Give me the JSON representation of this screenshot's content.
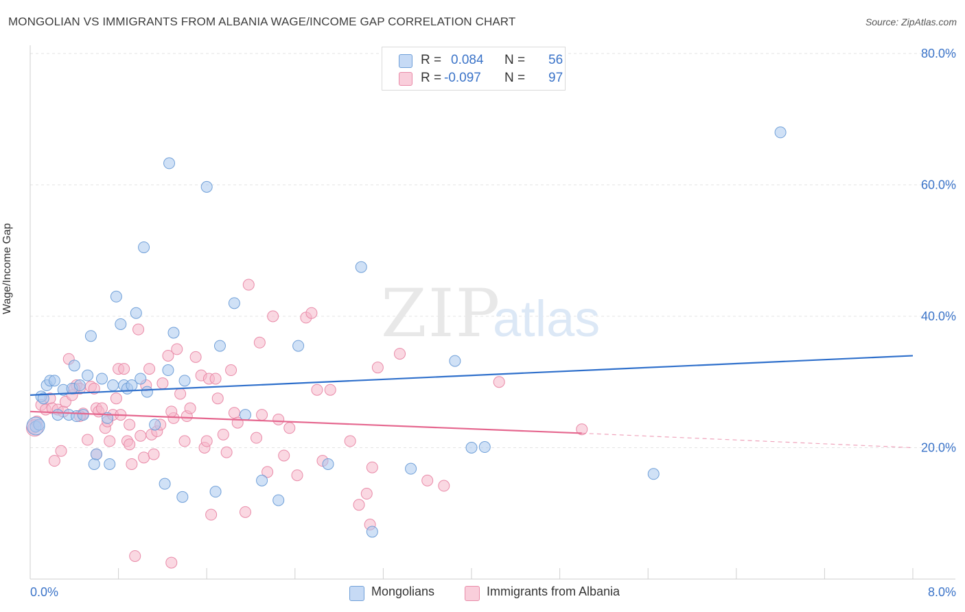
{
  "title": "MONGOLIAN VS IMMIGRANTS FROM ALBANIA WAGE/INCOME GAP CORRELATION CHART",
  "source": "Source: ZipAtlas.com",
  "watermark": {
    "zip": "ZIP",
    "atlas": "atlas"
  },
  "colors": {
    "blue_fill": "#a9c8ef",
    "blue_stroke": "#6f9fd8",
    "blue_line": "#2e6fcb",
    "pink_fill": "#f6b8cb",
    "pink_stroke": "#e98aa8",
    "pink_line": "#e5668e",
    "axis_text": "#3a73c8",
    "grid": "#e3e3e3"
  },
  "legend": {
    "rows": [
      {
        "r_label": "R =",
        "r_value": "0.084",
        "n_label": "N =",
        "n_value": "56"
      },
      {
        "r_label": "R =",
        "r_value": "-0.097",
        "n_label": "N =",
        "n_value": "97"
      }
    ]
  },
  "bottom_legend": {
    "mongolians": "Mongolians",
    "albania": "Immigrants from Albania"
  },
  "chart_data": {
    "type": "scatter",
    "title": "MONGOLIAN VS IMMIGRANTS FROM ALBANIA WAGE/INCOME GAP CORRELATION CHART",
    "ylabel": "Wage/Income Gap",
    "xlabel": "",
    "xlim": [
      0,
      8
    ],
    "ylim": [
      0,
      80
    ],
    "x_tick_labels": [
      "0.0%",
      "8.0%"
    ],
    "y_tick_labels": [
      "20.0%",
      "40.0%",
      "60.0%",
      "80.0%"
    ],
    "y_ticks": [
      20,
      40,
      60,
      80
    ],
    "grid": "horizontal dashed",
    "legend_placement": "top-center",
    "series": [
      {
        "name": "Mongolians",
        "color": "#a9c8ef",
        "trend": {
          "x": [
            0,
            8
          ],
          "y": [
            28.0,
            34.0
          ],
          "style": "solid"
        },
        "points": [
          [
            0.05,
            23.2
          ],
          [
            0.1,
            27.8
          ],
          [
            0.15,
            29.5
          ],
          [
            0.18,
            30.2
          ],
          [
            0.22,
            30.2
          ],
          [
            0.25,
            25.0
          ],
          [
            0.3,
            28.8
          ],
          [
            0.35,
            25.0
          ],
          [
            0.38,
            29.0
          ],
          [
            0.4,
            32.5
          ],
          [
            0.42,
            24.8
          ],
          [
            0.45,
            29.5
          ],
          [
            0.48,
            25.0
          ],
          [
            0.52,
            31.0
          ],
          [
            0.55,
            37.0
          ],
          [
            0.58,
            17.5
          ],
          [
            0.6,
            19.0
          ],
          [
            0.65,
            30.5
          ],
          [
            0.7,
            24.5
          ],
          [
            0.72,
            17.5
          ],
          [
            0.75,
            29.5
          ],
          [
            0.78,
            43.0
          ],
          [
            0.82,
            38.8
          ],
          [
            0.85,
            29.5
          ],
          [
            0.88,
            29.0
          ],
          [
            0.92,
            29.5
          ],
          [
            0.96,
            40.5
          ],
          [
            1.0,
            30.5
          ],
          [
            1.03,
            50.5
          ],
          [
            1.06,
            28.5
          ],
          [
            1.13,
            23.5
          ],
          [
            1.22,
            14.5
          ],
          [
            1.25,
            31.8
          ],
          [
            1.26,
            63.3
          ],
          [
            1.3,
            37.5
          ],
          [
            1.38,
            12.5
          ],
          [
            1.4,
            30.2
          ],
          [
            1.6,
            59.7
          ],
          [
            1.68,
            13.3
          ],
          [
            1.72,
            35.5
          ],
          [
            1.85,
            42.0
          ],
          [
            2.1,
            15.0
          ],
          [
            2.25,
            12.0
          ],
          [
            2.43,
            35.5
          ],
          [
            2.7,
            17.5
          ],
          [
            3.0,
            47.5
          ],
          [
            3.1,
            7.2
          ],
          [
            3.45,
            16.8
          ],
          [
            3.85,
            33.2
          ],
          [
            4.0,
            20.0
          ],
          [
            4.12,
            20.1
          ],
          [
            5.65,
            16.0
          ],
          [
            6.8,
            68.0
          ],
          [
            0.08,
            23.5
          ],
          [
            0.12,
            27.5
          ],
          [
            1.95,
            25.0
          ]
        ]
      },
      {
        "name": "Immigrants from Albania",
        "color": "#f6b8cb",
        "trend": {
          "x": [
            0,
            5.0
          ],
          "y": [
            25.5,
            22.2
          ],
          "style": "solid",
          "dashed_to": [
            8,
            20.0
          ]
        },
        "points": [
          [
            0.03,
            23.0
          ],
          [
            0.06,
            24.0
          ],
          [
            0.1,
            26.5
          ],
          [
            0.14,
            25.8
          ],
          [
            0.18,
            27.5
          ],
          [
            0.2,
            26.0
          ],
          [
            0.22,
            18.0
          ],
          [
            0.25,
            25.8
          ],
          [
            0.28,
            19.5
          ],
          [
            0.3,
            25.5
          ],
          [
            0.32,
            27.0
          ],
          [
            0.35,
            33.5
          ],
          [
            0.38,
            28.0
          ],
          [
            0.42,
            29.5
          ],
          [
            0.45,
            29.0
          ],
          [
            0.48,
            25.2
          ],
          [
            0.52,
            21.2
          ],
          [
            0.55,
            29.3
          ],
          [
            0.58,
            29.0
          ],
          [
            0.6,
            26.0
          ],
          [
            0.62,
            25.5
          ],
          [
            0.65,
            26.0
          ],
          [
            0.68,
            23.0
          ],
          [
            0.7,
            24.0
          ],
          [
            0.72,
            21.0
          ],
          [
            0.75,
            25.0
          ],
          [
            0.78,
            27.5
          ],
          [
            0.8,
            32.0
          ],
          [
            0.82,
            25.0
          ],
          [
            0.85,
            32.0
          ],
          [
            0.88,
            21.0
          ],
          [
            0.9,
            20.5
          ],
          [
            0.92,
            17.5
          ],
          [
            0.95,
            3.5
          ],
          [
            0.98,
            38.0
          ],
          [
            1.0,
            21.8
          ],
          [
            1.03,
            18.5
          ],
          [
            1.05,
            29.5
          ],
          [
            1.08,
            32.0
          ],
          [
            1.1,
            22.0
          ],
          [
            1.12,
            19.0
          ],
          [
            1.15,
            22.5
          ],
          [
            1.18,
            23.5
          ],
          [
            1.2,
            29.8
          ],
          [
            1.25,
            34.0
          ],
          [
            1.28,
            2.5
          ],
          [
            1.3,
            24.5
          ],
          [
            1.33,
            35.0
          ],
          [
            1.36,
            28.2
          ],
          [
            1.4,
            21.0
          ],
          [
            1.42,
            24.8
          ],
          [
            1.45,
            26.0
          ],
          [
            1.5,
            33.8
          ],
          [
            1.55,
            31.0
          ],
          [
            1.58,
            20.0
          ],
          [
            1.62,
            30.5
          ],
          [
            1.64,
            9.8
          ],
          [
            1.68,
            30.5
          ],
          [
            1.7,
            27.5
          ],
          [
            1.75,
            22.0
          ],
          [
            1.78,
            19.3
          ],
          [
            1.82,
            31.8
          ],
          [
            1.85,
            25.3
          ],
          [
            1.88,
            23.8
          ],
          [
            1.95,
            10.2
          ],
          [
            1.98,
            44.8
          ],
          [
            2.05,
            21.5
          ],
          [
            2.08,
            36.0
          ],
          [
            2.1,
            25.0
          ],
          [
            2.15,
            16.3
          ],
          [
            2.2,
            40.0
          ],
          [
            2.25,
            24.3
          ],
          [
            2.3,
            18.8
          ],
          [
            2.35,
            23.0
          ],
          [
            2.42,
            15.8
          ],
          [
            2.5,
            39.8
          ],
          [
            2.55,
            40.5
          ],
          [
            2.6,
            28.8
          ],
          [
            2.65,
            18.0
          ],
          [
            2.72,
            28.8
          ],
          [
            2.9,
            21.0
          ],
          [
            2.98,
            11.3
          ],
          [
            3.05,
            13.0
          ],
          [
            3.08,
            8.3
          ],
          [
            3.1,
            17.0
          ],
          [
            3.15,
            32.2
          ],
          [
            3.35,
            34.3
          ],
          [
            3.6,
            15.0
          ],
          [
            3.75,
            14.2
          ],
          [
            4.25,
            30.0
          ],
          [
            5.0,
            22.8
          ],
          [
            0.4,
            29.0
          ],
          [
            0.45,
            24.8
          ],
          [
            0.6,
            19.0
          ],
          [
            1.28,
            25.5
          ],
          [
            1.6,
            21.0
          ],
          [
            0.9,
            23.5
          ]
        ]
      }
    ]
  }
}
